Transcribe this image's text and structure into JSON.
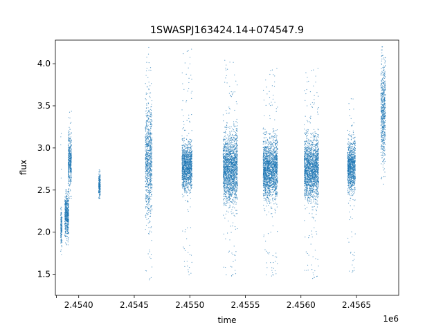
{
  "chart_data": {
    "type": "scatter",
    "title": "1SWASPJ163424.14+074547.9",
    "xlabel": "time",
    "ylabel": "flux",
    "x_offset_label": "1e6",
    "xlim": [
      2453790,
      2456880
    ],
    "ylim": [
      1.25,
      4.28
    ],
    "x_ticks": [
      2453800,
      2454000,
      2454500,
      2455000,
      2455500,
      2456000,
      2456500
    ],
    "x_tick_labels": [
      "",
      "2.4540",
      "2.4545",
      "2.4550",
      "2.4555",
      "2.4560",
      "2.4565"
    ],
    "y_ticks": [
      1.5,
      2.0,
      2.5,
      3.0,
      3.5,
      4.0
    ],
    "y_tick_labels": [
      "1.5",
      "2.0",
      "2.5",
      "3.0",
      "3.5",
      "4.0"
    ],
    "grid": false,
    "marker_color": "#1f77b4",
    "clusters": [
      {
        "t_start": 2453838,
        "t_end": 2453850,
        "flux_median": 2.05,
        "flux_spread": 0.12,
        "flux_min": 1.62,
        "flux_max": 3.3
      },
      {
        "t_start": 2453875,
        "t_end": 2453910,
        "flux_median": 2.2,
        "flux_spread": 0.12,
        "flux_min": 1.85,
        "flux_max": 2.5
      },
      {
        "t_start": 2453905,
        "t_end": 2453935,
        "flux_median": 2.85,
        "flux_spread": 0.15,
        "flux_min": 2.4,
        "flux_max": 3.45
      },
      {
        "t_start": 2454180,
        "t_end": 2454195,
        "flux_median": 2.55,
        "flux_spread": 0.07,
        "flux_min": 2.4,
        "flux_max": 2.77
      },
      {
        "t_start": 2454600,
        "t_end": 2454660,
        "flux_median": 2.85,
        "flux_spread": 0.32,
        "flux_min": 1.4,
        "flux_max": 4.2
      },
      {
        "t_start": 2454930,
        "t_end": 2455020,
        "flux_median": 2.78,
        "flux_spread": 0.13,
        "flux_min": 1.45,
        "flux_max": 4.18
      },
      {
        "t_start": 2455300,
        "t_end": 2455430,
        "flux_median": 2.75,
        "flux_spread": 0.2,
        "flux_min": 1.45,
        "flux_max": 4.1
      },
      {
        "t_start": 2455660,
        "t_end": 2455790,
        "flux_median": 2.75,
        "flux_spread": 0.17,
        "flux_min": 1.45,
        "flux_max": 3.95
      },
      {
        "t_start": 2456030,
        "t_end": 2456160,
        "flux_median": 2.75,
        "flux_spread": 0.17,
        "flux_min": 1.42,
        "flux_max": 3.95
      },
      {
        "t_start": 2456420,
        "t_end": 2456490,
        "flux_median": 2.78,
        "flux_spread": 0.15,
        "flux_min": 1.5,
        "flux_max": 3.65
      },
      {
        "t_start": 2456720,
        "t_end": 2456760,
        "flux_median": 3.4,
        "flux_spread": 0.28,
        "flux_min": 2.55,
        "flux_max": 4.2
      }
    ]
  }
}
